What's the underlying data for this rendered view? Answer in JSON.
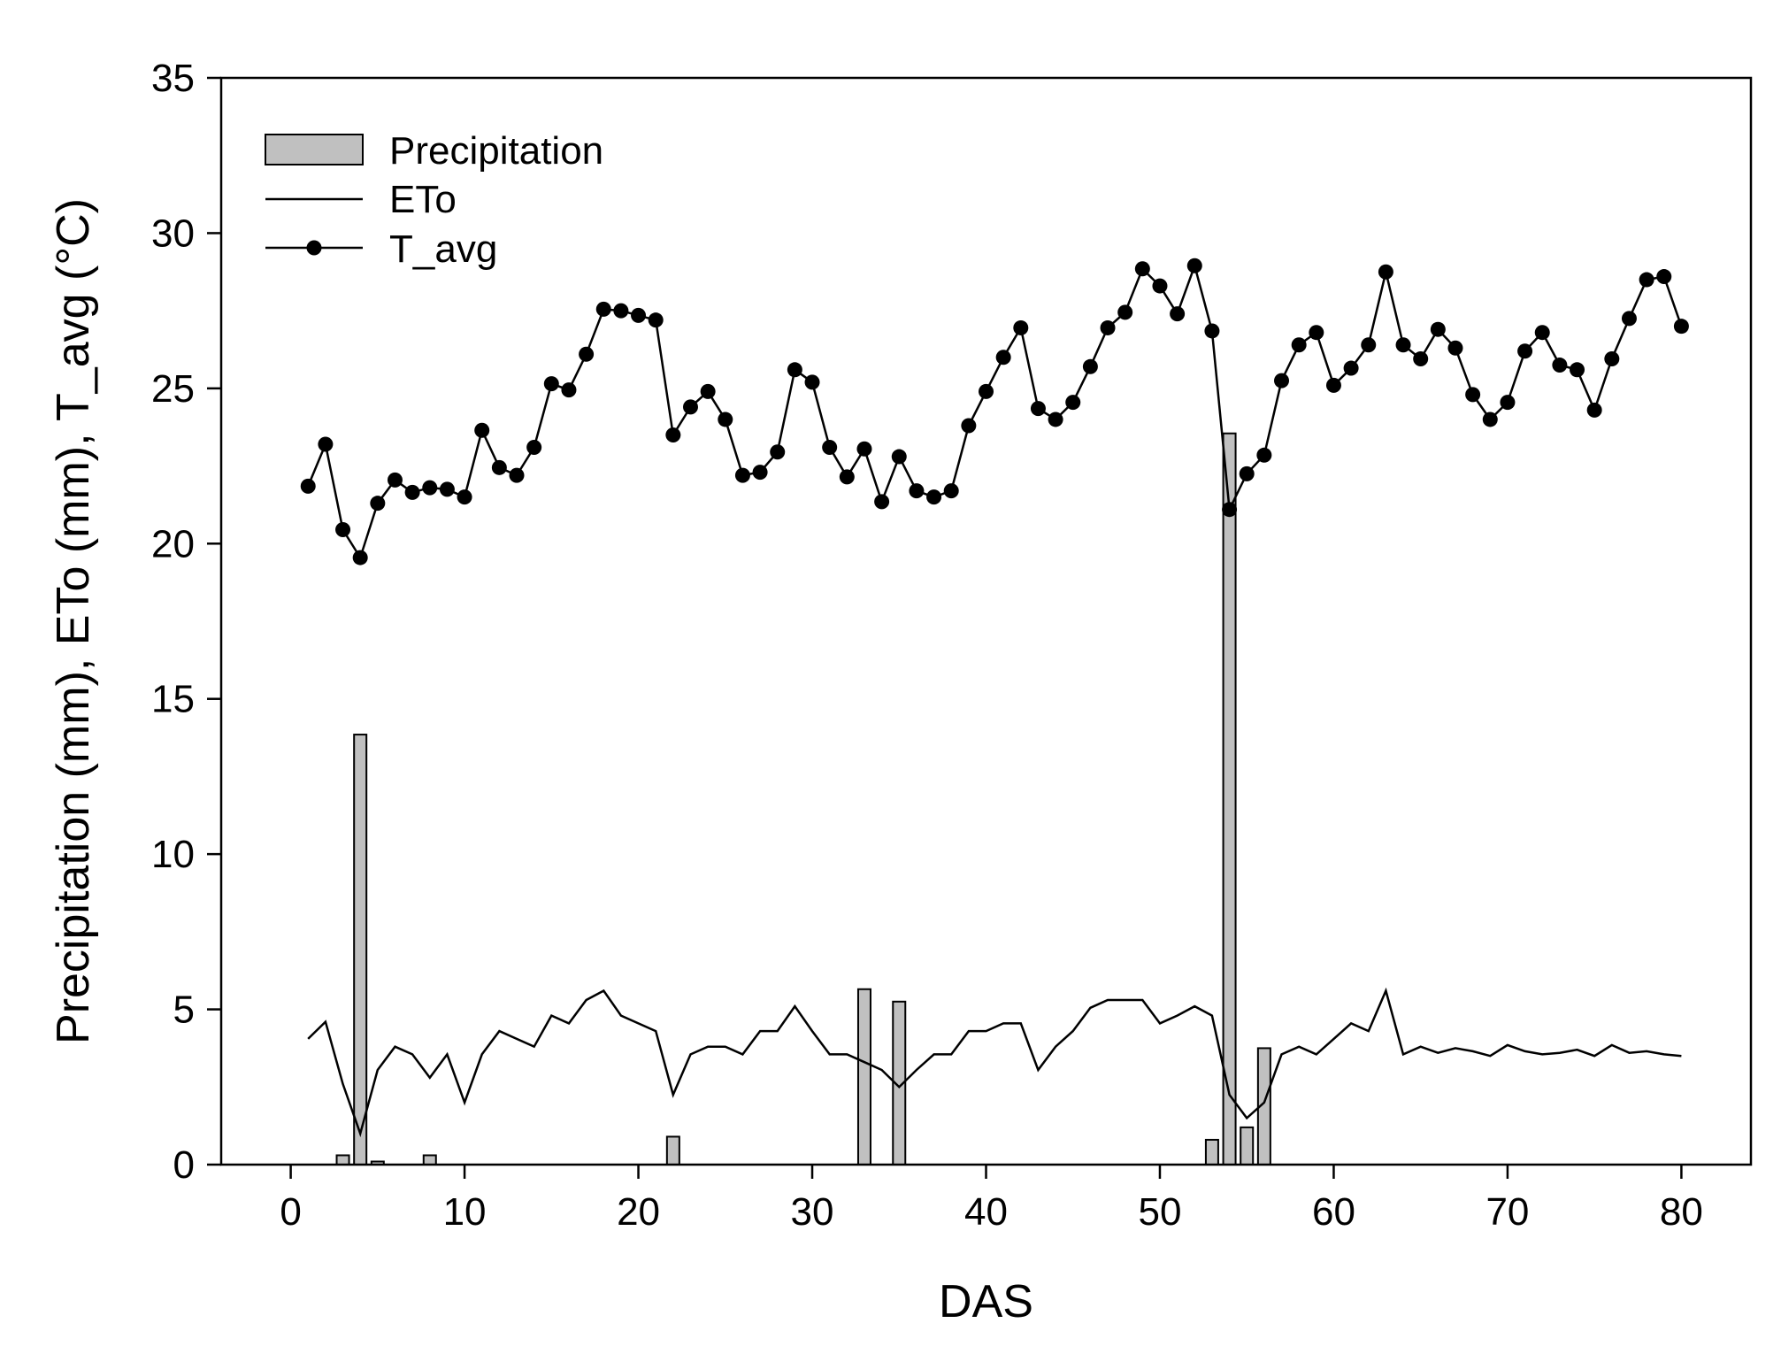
{
  "chart_data": {
    "type": "bar+line",
    "title": "",
    "xlabel": "DAS",
    "ylabel": "Precipitation (mm), ETo (mm), T_avg (°C)",
    "xlim": [
      -4,
      84
    ],
    "ylim": [
      0,
      35
    ],
    "xticks": [
      0,
      10,
      20,
      30,
      40,
      50,
      60,
      70,
      80
    ],
    "yticks": [
      0,
      5,
      10,
      15,
      20,
      25,
      30,
      35
    ],
    "legend": {
      "position": "top-left",
      "entries": [
        "Precipitation",
        "ETo",
        "T_avg"
      ]
    },
    "series": [
      {
        "name": "Precipitation",
        "kind": "bar",
        "x": [
          3,
          4,
          5,
          8,
          22,
          33,
          35,
          53,
          54,
          55,
          56
        ],
        "values": [
          0.3,
          13.85,
          0.1,
          0.3,
          0.9,
          5.65,
          5.25,
          0.8,
          23.55,
          1.2,
          3.75
        ],
        "color": "#c0c0c0"
      },
      {
        "name": "ETo",
        "kind": "line",
        "x": [
          1,
          2,
          3,
          4,
          5,
          6,
          7,
          8,
          9,
          10,
          11,
          12,
          13,
          14,
          15,
          16,
          17,
          18,
          19,
          20,
          21,
          22,
          23,
          24,
          25,
          26,
          27,
          28,
          29,
          30,
          31,
          32,
          33,
          34,
          35,
          36,
          37,
          38,
          39,
          40,
          41,
          42,
          43,
          44,
          45,
          46,
          47,
          48,
          49,
          50,
          51,
          52,
          53,
          54,
          55,
          56,
          57,
          58,
          59,
          60,
          61,
          62,
          63,
          64,
          65,
          66,
          67,
          68,
          69,
          70,
          71,
          72,
          73,
          74,
          75,
          76,
          77,
          78,
          79,
          80
        ],
        "values": [
          4.05,
          4.6,
          2.6,
          1.0,
          3.05,
          3.8,
          3.55,
          2.8,
          3.55,
          2.0,
          3.55,
          4.3,
          4.05,
          3.8,
          4.8,
          4.55,
          5.3,
          5.6,
          4.8,
          4.55,
          4.3,
          2.25,
          3.55,
          3.8,
          3.8,
          3.55,
          4.3,
          4.3,
          5.1,
          4.3,
          3.55,
          3.55,
          3.3,
          3.05,
          2.5,
          3.05,
          3.55,
          3.55,
          4.3,
          4.3,
          4.55,
          4.55,
          3.05,
          3.8,
          4.3,
          5.05,
          5.3,
          5.3,
          5.3,
          4.55,
          4.8,
          5.1,
          4.8,
          2.25,
          1.5,
          2.0,
          3.55,
          3.8,
          3.55,
          4.05,
          4.55,
          4.3,
          5.6,
          3.55,
          3.8,
          3.6,
          3.75,
          3.65,
          3.5,
          3.85,
          3.65,
          3.55,
          3.6,
          3.7,
          3.5,
          3.85,
          3.6,
          3.65,
          3.55,
          3.5
        ],
        "color": "#000000"
      },
      {
        "name": "T_avg",
        "kind": "line-marker",
        "x": [
          1,
          2,
          3,
          4,
          5,
          6,
          7,
          8,
          9,
          10,
          11,
          12,
          13,
          14,
          15,
          16,
          17,
          18,
          19,
          20,
          21,
          22,
          23,
          24,
          25,
          26,
          27,
          28,
          29,
          30,
          31,
          32,
          33,
          34,
          35,
          36,
          37,
          38,
          39,
          40,
          41,
          42,
          43,
          44,
          45,
          46,
          47,
          48,
          49,
          50,
          51,
          52,
          53,
          54,
          55,
          56,
          57,
          58,
          59,
          60,
          61,
          62,
          63,
          64,
          65,
          66,
          67,
          68,
          69,
          70,
          71,
          72,
          73,
          74,
          75,
          76,
          77,
          78,
          79,
          80
        ],
        "values": [
          21.85,
          23.2,
          20.45,
          19.55,
          21.3,
          22.05,
          21.65,
          21.8,
          21.75,
          21.5,
          23.65,
          22.45,
          22.2,
          23.1,
          25.15,
          24.95,
          26.1,
          27.55,
          27.5,
          27.35,
          27.2,
          23.5,
          24.4,
          24.9,
          24.0,
          22.2,
          22.3,
          22.95,
          25.6,
          25.2,
          23.1,
          22.15,
          23.05,
          21.35,
          22.8,
          21.7,
          21.5,
          21.7,
          23.8,
          24.9,
          26.0,
          26.95,
          24.35,
          24.0,
          24.55,
          25.7,
          26.95,
          27.45,
          28.85,
          28.3,
          27.4,
          28.95,
          26.85,
          21.1,
          22.25,
          22.85,
          25.25,
          26.4,
          26.8,
          25.1,
          25.65,
          26.4,
          28.75,
          26.4,
          25.95,
          26.9,
          26.3,
          24.8,
          24.0,
          24.55,
          26.2,
          26.8,
          25.75,
          25.6,
          24.3,
          25.95,
          27.25,
          28.5,
          28.6,
          27.0
        ],
        "color": "#000000"
      }
    ]
  }
}
